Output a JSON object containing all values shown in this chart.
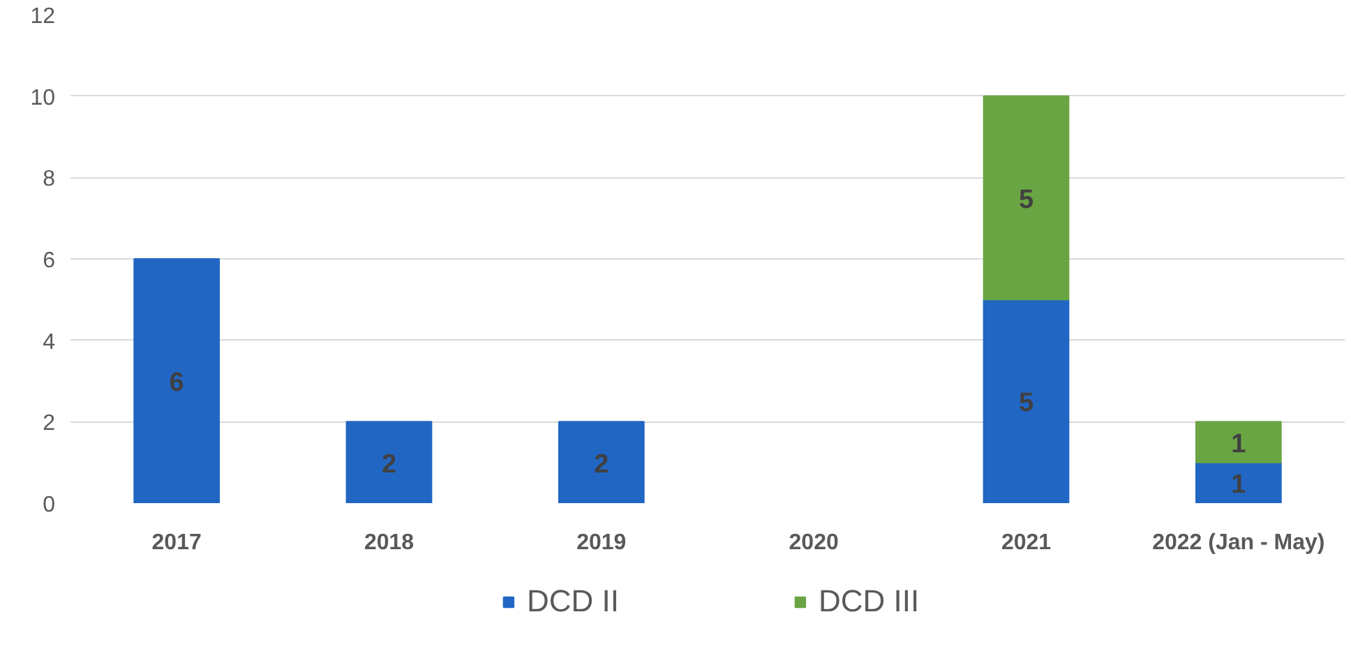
{
  "chart_data": {
    "type": "bar",
    "stacked": true,
    "categories": [
      "2017",
      "2018",
      "2019",
      "2020",
      "2021",
      "2022 (Jan - May)"
    ],
    "series": [
      {
        "name": "DCD II",
        "color": "#2266c4",
        "values": [
          6,
          2,
          2,
          null,
          5,
          1
        ]
      },
      {
        "name": "DCD III",
        "color": "#6aa544",
        "values": [
          null,
          null,
          null,
          null,
          5,
          1
        ]
      }
    ],
    "ylim": [
      0,
      12
    ],
    "yticks": [
      0,
      2,
      4,
      6,
      8,
      10,
      12
    ],
    "grid": "y",
    "legend": "bottom",
    "data_labels": true
  }
}
